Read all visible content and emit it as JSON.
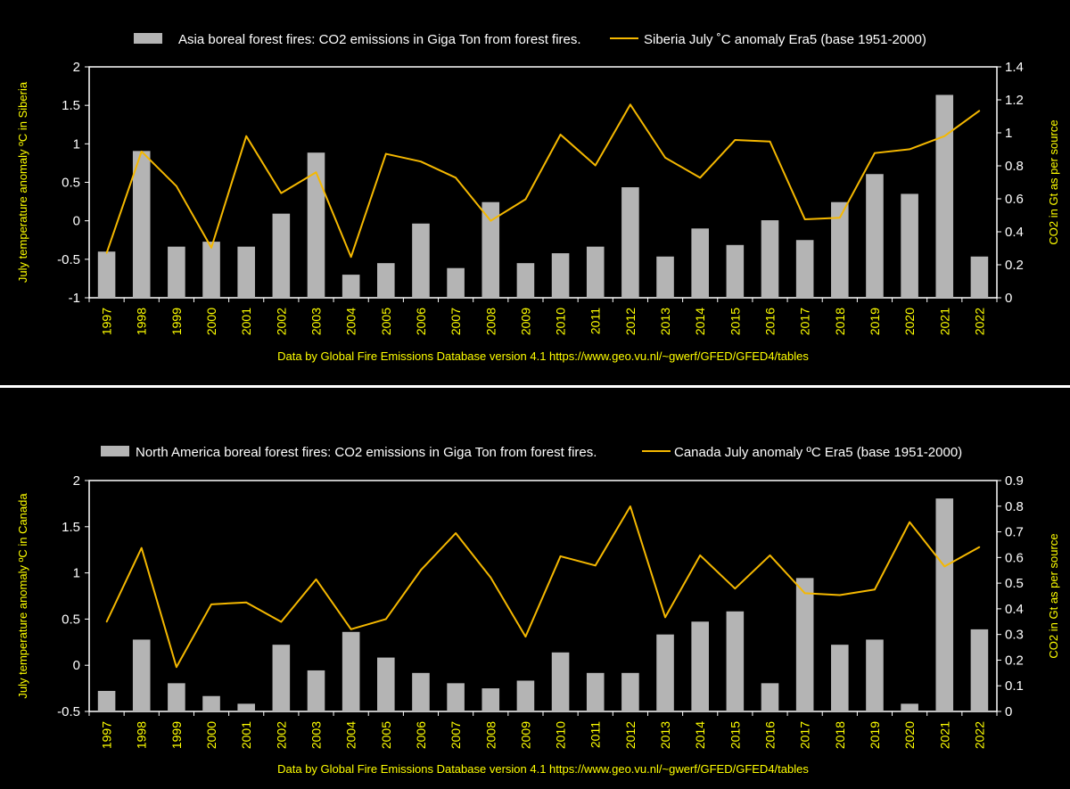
{
  "chart_data": [
    {
      "type": "bar+line",
      "legend": {
        "bar_label": "Asia boreal forest fires: CO2 emissions in Giga Ton from forest fires.",
        "line_label": "Siberia July ˚C anomaly Era5  (base 1951-2000)"
      },
      "categories": [
        "1997",
        "1998",
        "1999",
        "2000",
        "2001",
        "2002",
        "2003",
        "2004",
        "2005",
        "2006",
        "2007",
        "2008",
        "2009",
        "2010",
        "2011",
        "2012",
        "2013",
        "2014",
        "2015",
        "2016",
        "2017",
        "2018",
        "2019",
        "2020",
        "2021",
        "2022"
      ],
      "bar_series": {
        "name": "Asia boreal forest fires: CO2 emissions (Gt)",
        "axis": "right",
        "values": [
          0.28,
          0.89,
          0.31,
          0.34,
          0.31,
          0.51,
          0.88,
          0.14,
          0.21,
          0.45,
          0.18,
          0.58,
          0.21,
          0.27,
          0.31,
          0.67,
          0.25,
          0.42,
          0.32,
          0.47,
          0.35,
          0.58,
          0.75,
          0.63,
          1.23,
          0.25
        ]
      },
      "line_series": {
        "name": "Siberia July anomaly (°C)",
        "axis": "left",
        "color": "#f5b800",
        "values": [
          -0.42,
          0.9,
          0.45,
          -0.35,
          1.1,
          0.36,
          0.63,
          -0.47,
          0.87,
          0.77,
          0.56,
          0.0,
          0.28,
          1.12,
          0.72,
          1.51,
          0.82,
          0.56,
          1.05,
          1.03,
          0.02,
          0.04,
          0.88,
          0.93,
          1.1,
          1.43
        ]
      },
      "left_axis": {
        "label": "July temperature anomaly ºC in Siberia",
        "min": -1,
        "max": 2,
        "ticks": [
          "-1",
          "-0.5",
          "0",
          "0.5",
          "1",
          "1.5",
          "2"
        ]
      },
      "right_axis": {
        "label": "CO2 in Gt as per source",
        "min": 0,
        "max": 1.4,
        "ticks": [
          "0",
          "0.2",
          "0.4",
          "0.6",
          "0.8",
          "1",
          "1.2",
          "1.4"
        ]
      },
      "source": "Data by Global Fire Emissions Database version 4.1  https://www.geo.vu.nl/~gwerf/GFED/GFED4/tables"
    },
    {
      "type": "bar+line",
      "legend": {
        "bar_label": "North America boreal forest fires: CO2 emissions in Giga Ton from forest fires.",
        "line_label": "Canada July anomaly ºC Era5 (base 1951-2000)"
      },
      "categories": [
        "1997",
        "1998",
        "1999",
        "2000",
        "2001",
        "2002",
        "2003",
        "2004",
        "2005",
        "2006",
        "2007",
        "2008",
        "2009",
        "2010",
        "2011",
        "2012",
        "2013",
        "2014",
        "2015",
        "2016",
        "2017",
        "2018",
        "2019",
        "2020",
        "2021",
        "2022"
      ],
      "bar_series": {
        "name": "North America boreal forest fires: CO2 emissions (Gt)",
        "axis": "right",
        "values": [
          0.08,
          0.28,
          0.11,
          0.06,
          0.03,
          0.26,
          0.16,
          0.31,
          0.21,
          0.15,
          0.11,
          0.09,
          0.12,
          0.23,
          0.15,
          0.15,
          0.3,
          0.35,
          0.39,
          0.11,
          0.52,
          0.26,
          0.28,
          0.03,
          0.83,
          0.32
        ]
      },
      "line_series": {
        "name": "Canada July anomaly (°C)",
        "axis": "left",
        "color": "#f5b800",
        "values": [
          0.47,
          1.27,
          -0.02,
          0.66,
          0.68,
          0.47,
          0.93,
          0.39,
          0.5,
          1.03,
          1.43,
          0.95,
          0.31,
          1.18,
          1.08,
          1.72,
          0.52,
          1.19,
          0.83,
          1.19,
          0.78,
          0.76,
          0.82,
          1.55,
          1.07,
          1.28
        ]
      },
      "left_axis": {
        "label": "July temperature anomaly ºC in Canada",
        "min": -0.5,
        "max": 2,
        "ticks": [
          "-0.5",
          "0",
          "0.5",
          "1",
          "1.5",
          "2"
        ]
      },
      "right_axis": {
        "label": "CO2 in Gt as per source",
        "min": 0,
        "max": 0.9,
        "ticks": [
          "0",
          "0.1",
          "0.2",
          "0.3",
          "0.4",
          "0.5",
          "0.6",
          "0.7",
          "0.8",
          "0.9"
        ]
      },
      "source": "Data by Global Fire Emissions Database version 4.1  https://www.geo.vu.nl/~gwerf/GFED/GFED4/tables"
    }
  ],
  "colors": {
    "bar": "#b4b4b4",
    "line": "#f5b800",
    "axis": "#ffffff",
    "label": "#ffff00"
  }
}
